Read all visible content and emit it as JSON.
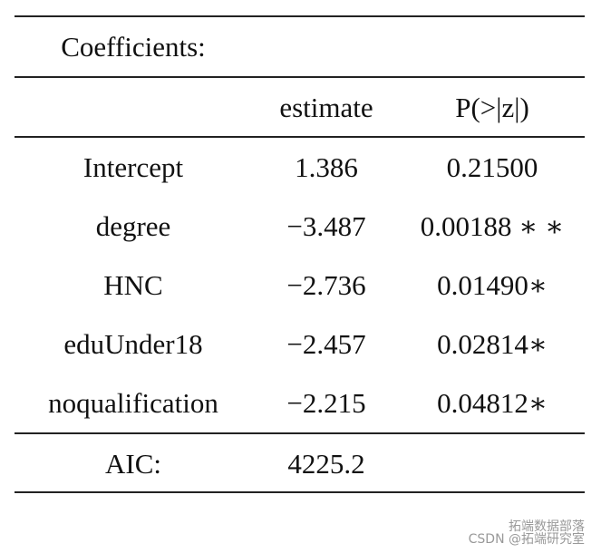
{
  "table": {
    "title": "Coefficients:",
    "headers": [
      "estimate",
      "P(>|z|)"
    ],
    "rows": [
      [
        "Intercept",
        "1.386",
        "0.21500"
      ],
      [
        "degree",
        "−3.487",
        "0.00188 ∗ ∗"
      ],
      [
        "HNC",
        "−2.736",
        "0.01490∗"
      ],
      [
        "eduUnder18",
        "−2.457",
        "0.02814∗"
      ],
      [
        "noqualification",
        "−2.215",
        "0.04812∗"
      ]
    ],
    "footer": [
      "AIC:",
      "4225.2"
    ]
  },
  "watermark": {
    "source": "拓端数据部落",
    "credit": "CSDN @拓端研究室"
  }
}
